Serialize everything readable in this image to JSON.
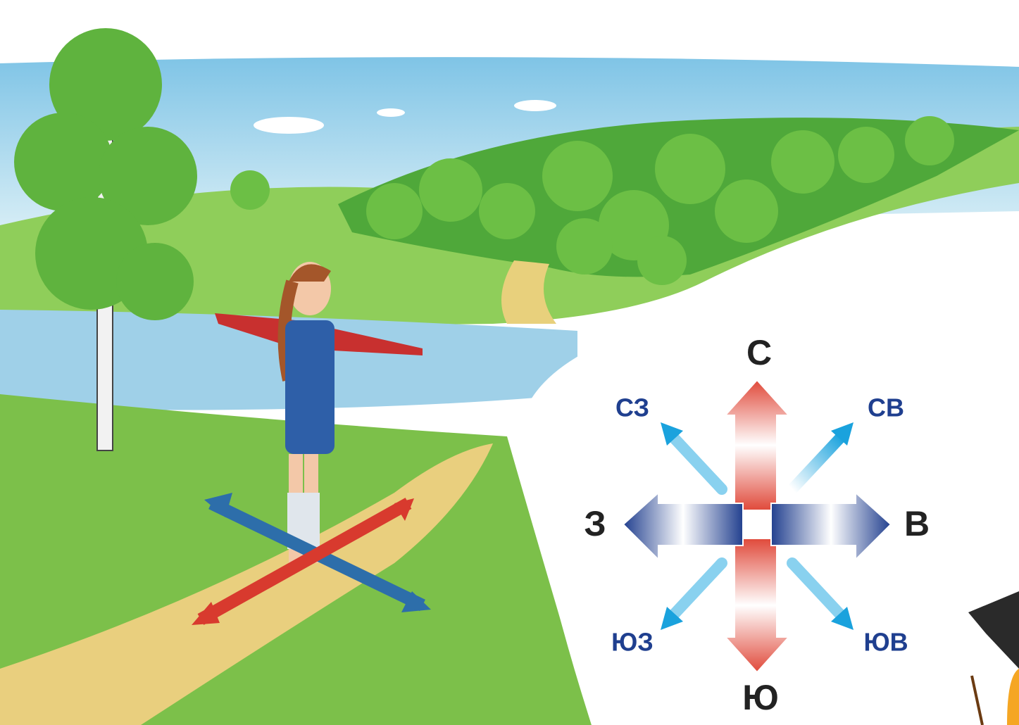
{
  "compass": {
    "north": "С",
    "northeast": "СВ",
    "east": "В",
    "southeast": "ЮВ",
    "south": "Ю",
    "southwest": "ЮЗ",
    "west": "З",
    "northwest": "СЗ"
  }
}
